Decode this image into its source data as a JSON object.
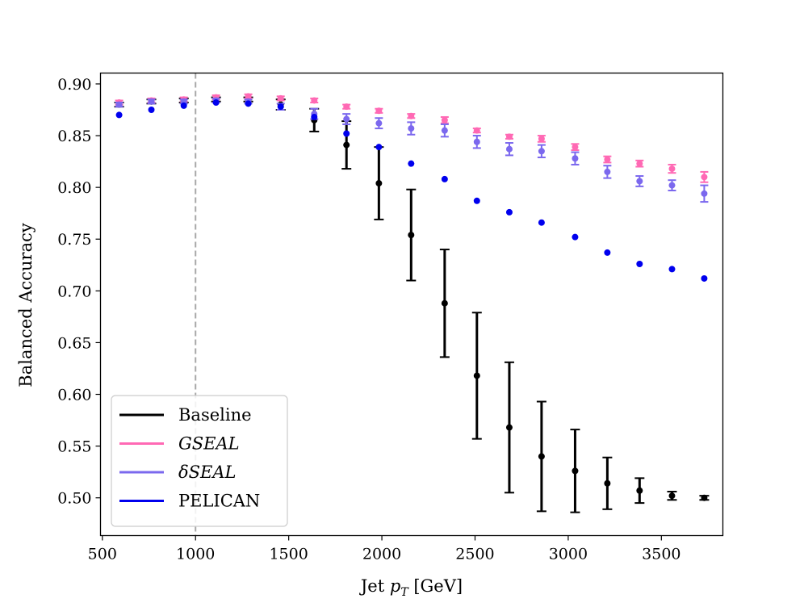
{
  "chart_data": {
    "type": "scatter",
    "title": "",
    "xlabel": "Jet p_T [GeV]",
    "xlabel_parts": {
      "main": "Jet ",
      "var": "p",
      "sub": "T",
      "unit": " [GeV]"
    },
    "ylabel": "Balanced Accuracy",
    "xlim": [
      490,
      3830
    ],
    "ylim": [
      0.4635,
      0.9105
    ],
    "xticks": [
      "500",
      "1000",
      "1500",
      "2000",
      "2500",
      "3000",
      "3500"
    ],
    "yticks": [
      "0.50",
      "0.55",
      "0.60",
      "0.65",
      "0.70",
      "0.75",
      "0.80",
      "0.85",
      "0.90"
    ],
    "reference_line": {
      "x": 1000,
      "style": "dashed",
      "color": "#a8a8a8"
    },
    "legend_position": "lower-left",
    "x": [
      590,
      763,
      937,
      1110,
      1283,
      1457,
      1637,
      1810,
      1984,
      2157,
      2337,
      2510,
      2684,
      2857,
      3037,
      3210,
      3383,
      3557,
      3730
    ],
    "series": [
      {
        "name": "Baseline",
        "color": "#000000",
        "italic": false,
        "values": [
          0.88,
          0.883,
          0.884,
          0.885,
          0.885,
          0.88,
          0.865,
          0.841,
          0.804,
          0.754,
          0.688,
          0.618,
          0.568,
          0.54,
          0.526,
          0.514,
          0.507,
          0.502,
          0.5
        ],
        "errors": [
          0.002,
          0.002,
          0.002,
          0.002,
          0.002,
          0.005,
          0.011,
          0.023,
          0.035,
          0.044,
          0.052,
          0.061,
          0.063,
          0.053,
          0.04,
          0.025,
          0.012,
          0.004,
          0.002
        ]
      },
      {
        "name": "GSEAL",
        "color": "#ff69b4",
        "italic": true,
        "values": [
          0.882,
          0.884,
          0.885,
          0.887,
          0.888,
          0.886,
          0.884,
          0.878,
          0.874,
          0.869,
          0.865,
          0.855,
          0.849,
          0.847,
          0.839,
          0.827,
          0.823,
          0.818,
          0.81
        ],
        "errors": [
          0.002,
          0.002,
          0.002,
          0.002,
          0.002,
          0.002,
          0.002,
          0.002,
          0.002,
          0.002,
          0.003,
          0.002,
          0.002,
          0.003,
          0.003,
          0.003,
          0.003,
          0.004,
          0.005
        ]
      },
      {
        "name": "δSEAL",
        "color": "#7b68ee",
        "italic": true,
        "values": [
          0.88,
          0.883,
          0.883,
          0.884,
          0.883,
          0.878,
          0.871,
          0.866,
          0.862,
          0.857,
          0.855,
          0.844,
          0.837,
          0.835,
          0.828,
          0.815,
          0.806,
          0.802,
          0.794
        ],
        "errors": [
          0.002,
          0.002,
          0.002,
          0.002,
          0.002,
          0.003,
          0.005,
          0.005,
          0.005,
          0.006,
          0.006,
          0.006,
          0.006,
          0.006,
          0.006,
          0.006,
          0.005,
          0.005,
          0.008
        ]
      },
      {
        "name": "PELICAN",
        "color": "#0000ee",
        "italic": false,
        "values": [
          0.87,
          0.875,
          0.879,
          0.882,
          0.881,
          0.878,
          0.868,
          0.852,
          0.839,
          0.823,
          0.808,
          0.787,
          0.776,
          0.766,
          0.752,
          0.737,
          0.726,
          0.721,
          0.712
        ],
        "errors": null
      }
    ]
  }
}
